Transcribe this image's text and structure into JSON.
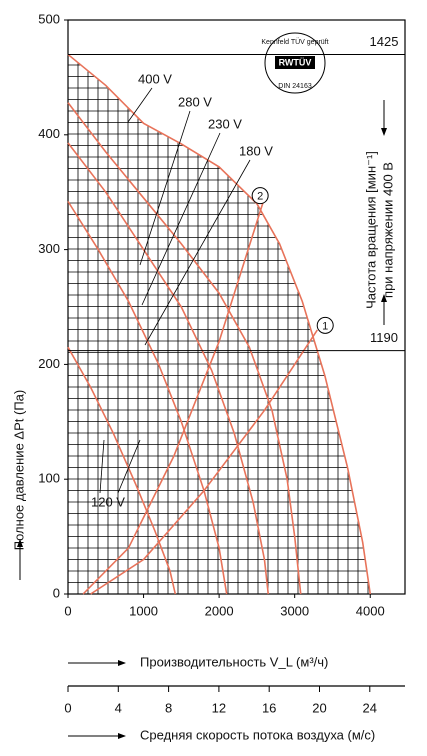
{
  "chart_data": {
    "type": "line",
    "ylabel": "Полное давление ΔPt (Па)",
    "xlabel": "Производительность V_L (м³/ч)",
    "x2label": "Средняя скорость потока воздуха (м/с)",
    "right_label_1": "Частота вращения [мин⁻¹]",
    "right_label_2": "при напряжении 400 В",
    "logo": {
      "ring": "Kennfeld TÜV geprüft",
      "center": "RWTÜV",
      "bottom": "DIN 24163"
    },
    "xlim": [
      0,
      4460
    ],
    "ylim": [
      0,
      500
    ],
    "xticks": [
      0,
      1000,
      2000,
      3000,
      4000
    ],
    "yticks": [
      0,
      100,
      200,
      300,
      400,
      500
    ],
    "x2lim": [
      0,
      26.8
    ],
    "x2ticks": [
      0,
      4,
      8,
      12,
      16,
      20,
      24
    ],
    "grid": true,
    "series": [
      {
        "name": "400 V",
        "color": "#e8735a",
        "x": [
          0,
          500,
          1000,
          1500,
          2000,
          2500,
          2800,
          3100,
          3400,
          3700,
          3900,
          4000
        ],
        "values": [
          470,
          443,
          410,
          392,
          372,
          340,
          305,
          255,
          190,
          110,
          45,
          0
        ]
      },
      {
        "name": "280 V",
        "color": "#e8735a",
        "x": [
          0,
          500,
          1000,
          1500,
          2000,
          2400,
          2700,
          2900,
          3000,
          3080
        ],
        "values": [
          428,
          385,
          345,
          305,
          262,
          215,
          160,
          100,
          50,
          0
        ]
      },
      {
        "name": "230 V",
        "color": "#e8735a",
        "x": [
          0,
          500,
          1000,
          1500,
          1900,
          2200,
          2450,
          2600,
          2650
        ],
        "values": [
          393,
          350,
          300,
          250,
          195,
          140,
          80,
          30,
          0
        ]
      },
      {
        "name": "180 V",
        "color": "#e8735a",
        "x": [
          0,
          400,
          800,
          1200,
          1500,
          1800,
          2000,
          2100
        ],
        "values": [
          342,
          300,
          255,
          200,
          150,
          90,
          40,
          0
        ]
      },
      {
        "name": "120 V",
        "color": "#e8735a",
        "x": [
          0,
          300,
          600,
          900,
          1150,
          1350,
          1420
        ],
        "values": [
          215,
          180,
          140,
          95,
          55,
          20,
          0
        ]
      }
    ],
    "system_curves": [
      {
        "color": "#e8735a",
        "x": [
          200,
          800,
          1400,
          2000,
          2600
        ],
        "values": [
          0,
          40,
          120,
          220,
          345
        ]
      },
      {
        "color": "#e8735a",
        "x": [
          300,
          1000,
          1800,
          2600,
          3300
        ],
        "values": [
          0,
          30,
          90,
          160,
          230
        ]
      }
    ],
    "operating_points": [
      {
        "label": "2",
        "x": 2543,
        "y": 347
      },
      {
        "label": "1",
        "x": 3404,
        "y": 234
      }
    ],
    "speed_marks": [
      {
        "label": "1425",
        "y": 470
      },
      {
        "label": "1190",
        "y": 212
      }
    ]
  }
}
